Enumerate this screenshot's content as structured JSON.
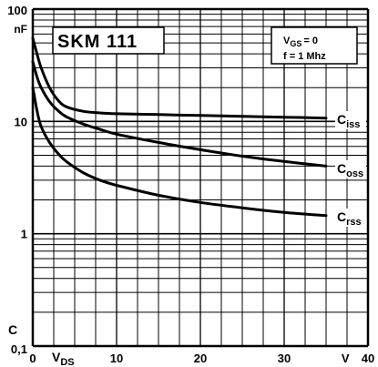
{
  "chart_data": {
    "type": "line",
    "title": "SKM 111",
    "y_scale": "log",
    "xlim": [
      0,
      40
    ],
    "ylim": [
      0.1,
      100
    ],
    "grid": true,
    "x_ticks": [
      0,
      10,
      20,
      30,
      40
    ],
    "y_ticks": [
      {
        "value": 0.1,
        "label": "0,1"
      },
      {
        "value": 1,
        "label": "1"
      },
      {
        "value": 10,
        "label": "10"
      },
      {
        "value": 100,
        "label": "100"
      }
    ],
    "x_axis": {
      "label_main": "V",
      "label_sub": "DS",
      "unit": "V"
    },
    "y_axis": {
      "label": "C",
      "unit": "nF"
    },
    "conditions": [
      {
        "main": "V",
        "sub": "GS",
        "rest": "= 0"
      },
      {
        "main": "f = 1 Mhz",
        "sub": "",
        "rest": ""
      }
    ],
    "series": [
      {
        "name": "Ciss",
        "label_main": "C",
        "label_sub": "iss",
        "x": [
          0,
          0.5,
          1,
          2,
          3,
          4,
          6,
          8,
          10,
          15,
          20,
          25,
          30,
          35
        ],
        "y": [
          55,
          40,
          30,
          20,
          15.5,
          13.5,
          12.3,
          11.9,
          11.7,
          11.5,
          11.3,
          11.1,
          10.9,
          10.7
        ]
      },
      {
        "name": "Coss",
        "label_main": "C",
        "label_sub": "oss",
        "x": [
          0,
          0.5,
          1,
          2,
          3,
          4,
          6,
          8,
          10,
          15,
          20,
          25,
          30,
          35
        ],
        "y": [
          34,
          25,
          20,
          15,
          12.5,
          11,
          9.5,
          8.5,
          7.7,
          6.5,
          5.6,
          4.9,
          4.4,
          4.0
        ]
      },
      {
        "name": "Crss",
        "label_main": "C",
        "label_sub": "rss",
        "x": [
          0,
          0.5,
          1,
          2,
          3,
          4,
          6,
          8,
          10,
          15,
          20,
          25,
          30,
          35
        ],
        "y": [
          20,
          12.5,
          9,
          6.5,
          5.2,
          4.4,
          3.5,
          3.0,
          2.7,
          2.2,
          1.9,
          1.7,
          1.55,
          1.45
        ]
      }
    ]
  }
}
